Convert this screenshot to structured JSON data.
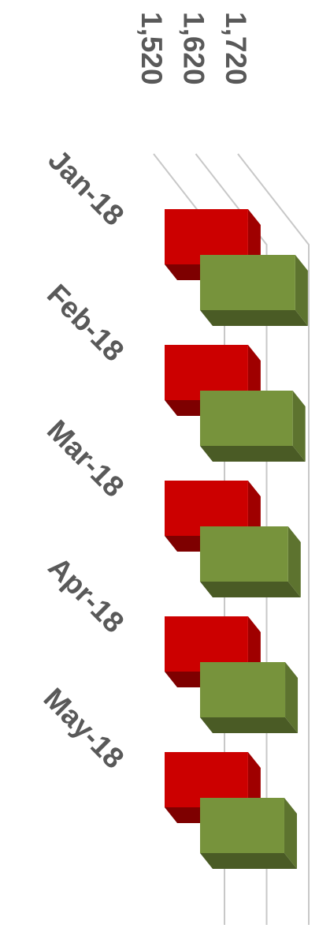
{
  "chart_data": {
    "type": "bar3d",
    "categories": [
      "Jan-18",
      "Feb-18",
      "Mar-18",
      "Apr-18",
      "May-18"
    ],
    "series": [
      {
        "color": "#cc0000",
        "values": [
          1660,
          1660,
          1660,
          1660,
          1660
        ]
      },
      {
        "color": "#77933c",
        "values": [
          1688,
          1682,
          1671,
          1664,
          1662
        ]
      }
    ],
    "xlim": [
      1462,
      1720
    ],
    "xticks": [
      {
        "value": 1520,
        "label": "1,520"
      },
      {
        "value": 1620,
        "label": "1,620"
      },
      {
        "value": 1720,
        "label": "1,720"
      }
    ],
    "grid": true
  }
}
